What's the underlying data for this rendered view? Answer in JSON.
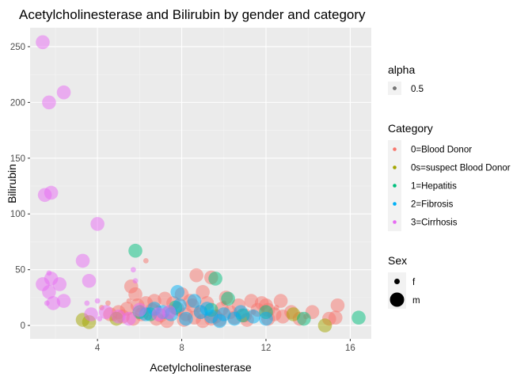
{
  "chart_data": {
    "type": "scatter",
    "title": "Acetylcholinesterase and Bilirubin by gender and category",
    "xlabel": "Acetylcholinesterase",
    "ylabel": "Bilirubin",
    "xlim": [
      0.8,
      17.0
    ],
    "ylim": [
      -12,
      267
    ],
    "x_ticks": [
      4,
      8,
      12,
      16
    ],
    "y_ticks": [
      0,
      50,
      100,
      150,
      200,
      250
    ],
    "grid": true,
    "point_opacity": 0.5,
    "legend_placement": "right",
    "legends": {
      "alpha": {
        "title": "alpha",
        "items": [
          {
            "label": "0.5"
          }
        ]
      },
      "category": {
        "title": "Category",
        "items": [
          {
            "label": "0=Blood Donor",
            "color": "#F8766D"
          },
          {
            "label": "0s=suspect Blood Donor",
            "color": "#A3A500"
          },
          {
            "label": "1=Hepatitis",
            "color": "#00BF7D"
          },
          {
            "label": "2=Fibrosis",
            "color": "#00B0F6"
          },
          {
            "label": "3=Cirrhosis",
            "color": "#E76BF3"
          }
        ]
      },
      "sex": {
        "title": "Sex",
        "items": [
          {
            "label": "f"
          },
          {
            "label": "m"
          }
        ]
      }
    },
    "series": [
      {
        "category": "0=Blood Donor",
        "color": "#F8766D",
        "points": [
          {
            "x": 5.6,
            "y": 35,
            "sex": "m"
          },
          {
            "x": 5.8,
            "y": 28,
            "sex": "m"
          },
          {
            "x": 6.3,
            "y": 58,
            "sex": "f"
          },
          {
            "x": 8.7,
            "y": 45,
            "sex": "m"
          },
          {
            "x": 9.4,
            "y": 43,
            "sex": "m"
          },
          {
            "x": 9.0,
            "y": 30,
            "sex": "m"
          },
          {
            "x": 8.0,
            "y": 28,
            "sex": "m"
          },
          {
            "x": 7.2,
            "y": 24,
            "sex": "m"
          },
          {
            "x": 6.7,
            "y": 22,
            "sex": "m"
          },
          {
            "x": 6.3,
            "y": 20,
            "sex": "m"
          },
          {
            "x": 5.9,
            "y": 18,
            "sex": "m"
          },
          {
            "x": 5.4,
            "y": 15,
            "sex": "m"
          },
          {
            "x": 5.0,
            "y": 12,
            "sex": "m"
          },
          {
            "x": 4.6,
            "y": 10,
            "sex": "m"
          },
          {
            "x": 4.2,
            "y": 16,
            "sex": "f"
          },
          {
            "x": 4.5,
            "y": 20,
            "sex": "f"
          },
          {
            "x": 5.2,
            "y": 8,
            "sex": "m"
          },
          {
            "x": 6.1,
            "y": 10,
            "sex": "m"
          },
          {
            "x": 6.6,
            "y": 14,
            "sex": "m"
          },
          {
            "x": 7.0,
            "y": 9,
            "sex": "m"
          },
          {
            "x": 7.4,
            "y": 12,
            "sex": "m"
          },
          {
            "x": 7.8,
            "y": 15,
            "sex": "m"
          },
          {
            "x": 8.2,
            "y": 10,
            "sex": "m"
          },
          {
            "x": 8.5,
            "y": 18,
            "sex": "m"
          },
          {
            "x": 8.9,
            "y": 12,
            "sex": "m"
          },
          {
            "x": 9.2,
            "y": 20,
            "sex": "m"
          },
          {
            "x": 9.6,
            "y": 8,
            "sex": "m"
          },
          {
            "x": 9.9,
            "y": 15,
            "sex": "m"
          },
          {
            "x": 10.3,
            "y": 12,
            "sex": "m"
          },
          {
            "x": 10.7,
            "y": 18,
            "sex": "m"
          },
          {
            "x": 11.0,
            "y": 9,
            "sex": "m"
          },
          {
            "x": 11.3,
            "y": 22,
            "sex": "m"
          },
          {
            "x": 11.6,
            "y": 14,
            "sex": "m"
          },
          {
            "x": 12.0,
            "y": 18,
            "sex": "m"
          },
          {
            "x": 12.4,
            "y": 10,
            "sex": "m"
          },
          {
            "x": 12.8,
            "y": 8,
            "sex": "m"
          },
          {
            "x": 13.2,
            "y": 12,
            "sex": "m"
          },
          {
            "x": 10.1,
            "y": 25,
            "sex": "m"
          },
          {
            "x": 11.8,
            "y": 20,
            "sex": "m"
          },
          {
            "x": 7.6,
            "y": 20,
            "sex": "m"
          },
          {
            "x": 8.1,
            "y": 5,
            "sex": "m"
          },
          {
            "x": 8.6,
            "y": 7,
            "sex": "m"
          },
          {
            "x": 9.0,
            "y": 4,
            "sex": "m"
          },
          {
            "x": 9.4,
            "y": 6,
            "sex": "m"
          },
          {
            "x": 9.8,
            "y": 5,
            "sex": "m"
          },
          {
            "x": 10.5,
            "y": 7,
            "sex": "m"
          },
          {
            "x": 11.1,
            "y": 5,
            "sex": "m"
          },
          {
            "x": 12.1,
            "y": 6,
            "sex": "m"
          },
          {
            "x": 6.8,
            "y": 6,
            "sex": "m"
          },
          {
            "x": 7.3,
            "y": 4,
            "sex": "m"
          },
          {
            "x": 5.7,
            "y": 6,
            "sex": "m"
          },
          {
            "x": 12.1,
            "y": 14,
            "sex": "m"
          },
          {
            "x": 13.6,
            "y": 6,
            "sex": "m"
          },
          {
            "x": 14.2,
            "y": 12,
            "sex": "m"
          },
          {
            "x": 15.0,
            "y": 6,
            "sex": "m"
          },
          {
            "x": 15.4,
            "y": 18,
            "sex": "m"
          },
          {
            "x": 15.3,
            "y": 7,
            "sex": "m"
          },
          {
            "x": 12.7,
            "y": 22,
            "sex": "m"
          },
          {
            "x": 8.4,
            "y": 22,
            "sex": "m"
          },
          {
            "x": 7.9,
            "y": 10,
            "sex": "f"
          },
          {
            "x": 9.2,
            "y": 9,
            "sex": "f"
          },
          {
            "x": 10.6,
            "y": 10,
            "sex": "f"
          },
          {
            "x": 6.9,
            "y": 16,
            "sex": "f"
          },
          {
            "x": 5.5,
            "y": 22,
            "sex": "f"
          },
          {
            "x": 10.0,
            "y": 20,
            "sex": "f"
          },
          {
            "x": 11.4,
            "y": 12,
            "sex": "f"
          },
          {
            "x": 8.8,
            "y": 14,
            "sex": "f"
          },
          {
            "x": 9.7,
            "y": 12,
            "sex": "f"
          },
          {
            "x": 7.1,
            "y": 8,
            "sex": "f"
          },
          {
            "x": 6.4,
            "y": 7,
            "sex": "f"
          },
          {
            "x": 4.8,
            "y": 6,
            "sex": "f"
          },
          {
            "x": 12.5,
            "y": 16,
            "sex": "f"
          },
          {
            "x": 13.9,
            "y": 8,
            "sex": "f"
          }
        ]
      },
      {
        "category": "0s=suspect Blood Donor",
        "color": "#A3A500",
        "points": [
          {
            "x": 3.3,
            "y": 5,
            "sex": "m"
          },
          {
            "x": 3.6,
            "y": 3,
            "sex": "m"
          },
          {
            "x": 4.9,
            "y": 6,
            "sex": "m"
          },
          {
            "x": 13.3,
            "y": 10,
            "sex": "m"
          },
          {
            "x": 14.8,
            "y": 0,
            "sex": "m"
          }
        ]
      },
      {
        "category": "1=Hepatitis",
        "color": "#00BF7D",
        "points": [
          {
            "x": 5.8,
            "y": 67,
            "sex": "m"
          },
          {
            "x": 9.6,
            "y": 42,
            "sex": "m"
          },
          {
            "x": 10.2,
            "y": 24,
            "sex": "m"
          },
          {
            "x": 7.7,
            "y": 16,
            "sex": "m"
          },
          {
            "x": 12.0,
            "y": 12,
            "sex": "m"
          },
          {
            "x": 13.8,
            "y": 6,
            "sex": "m"
          },
          {
            "x": 16.4,
            "y": 7,
            "sex": "m"
          },
          {
            "x": 6.5,
            "y": 10,
            "sex": "m"
          },
          {
            "x": 10.9,
            "y": 9,
            "sex": "m"
          },
          {
            "x": 9.4,
            "y": 14,
            "sex": "m"
          },
          {
            "x": 6.0,
            "y": 12,
            "sex": "m"
          }
        ]
      },
      {
        "category": "2=Fibrosis",
        "color": "#00B0F6",
        "points": [
          {
            "x": 7.8,
            "y": 30,
            "sex": "m"
          },
          {
            "x": 8.6,
            "y": 22,
            "sex": "m"
          },
          {
            "x": 7.1,
            "y": 12,
            "sex": "m"
          },
          {
            "x": 7.5,
            "y": 10,
            "sex": "m"
          },
          {
            "x": 8.9,
            "y": 12,
            "sex": "m"
          },
          {
            "x": 9.4,
            "y": 8,
            "sex": "m"
          },
          {
            "x": 10.0,
            "y": 10,
            "sex": "m"
          },
          {
            "x": 10.5,
            "y": 6,
            "sex": "m"
          },
          {
            "x": 11.4,
            "y": 8,
            "sex": "m"
          },
          {
            "x": 12.0,
            "y": 6,
            "sex": "m"
          },
          {
            "x": 9.2,
            "y": 15,
            "sex": "m"
          },
          {
            "x": 7.9,
            "y": 18,
            "sex": "m"
          },
          {
            "x": 10.8,
            "y": 12,
            "sex": "m"
          },
          {
            "x": 6.7,
            "y": 15,
            "sex": "m"
          },
          {
            "x": 8.2,
            "y": 6,
            "sex": "m"
          },
          {
            "x": 9.8,
            "y": 4,
            "sex": "m"
          },
          {
            "x": 6.3,
            "y": 10,
            "sex": "m"
          }
        ]
      },
      {
        "category": "3=Cirrhosis",
        "color": "#E76BF3",
        "points": [
          {
            "x": 1.4,
            "y": 254,
            "sex": "m"
          },
          {
            "x": 2.4,
            "y": 209,
            "sex": "m"
          },
          {
            "x": 1.7,
            "y": 200,
            "sex": "m"
          },
          {
            "x": 1.8,
            "y": 119,
            "sex": "m"
          },
          {
            "x": 1.5,
            "y": 117,
            "sex": "m"
          },
          {
            "x": 4.0,
            "y": 91,
            "sex": "m"
          },
          {
            "x": 3.3,
            "y": 58,
            "sex": "m"
          },
          {
            "x": 1.7,
            "y": 47,
            "sex": "f"
          },
          {
            "x": 1.8,
            "y": 42,
            "sex": "m"
          },
          {
            "x": 1.4,
            "y": 37,
            "sex": "m"
          },
          {
            "x": 2.2,
            "y": 37,
            "sex": "m"
          },
          {
            "x": 1.7,
            "y": 30,
            "sex": "m"
          },
          {
            "x": 3.6,
            "y": 40,
            "sex": "m"
          },
          {
            "x": 2.4,
            "y": 22,
            "sex": "m"
          },
          {
            "x": 1.9,
            "y": 20,
            "sex": "m"
          },
          {
            "x": 1.6,
            "y": 20,
            "sex": "f"
          },
          {
            "x": 3.5,
            "y": 20,
            "sex": "f"
          },
          {
            "x": 4.0,
            "y": 22,
            "sex": "f"
          },
          {
            "x": 5.7,
            "y": 50,
            "sex": "f"
          },
          {
            "x": 5.8,
            "y": 40,
            "sex": "f"
          },
          {
            "x": 3.7,
            "y": 10,
            "sex": "m"
          },
          {
            "x": 4.4,
            "y": 12,
            "sex": "m"
          },
          {
            "x": 5.0,
            "y": 8,
            "sex": "m"
          },
          {
            "x": 5.5,
            "y": 6,
            "sex": "m"
          },
          {
            "x": 6.9,
            "y": 10,
            "sex": "m"
          },
          {
            "x": 7.4,
            "y": 12,
            "sex": "m"
          },
          {
            "x": 6.0,
            "y": 14,
            "sex": "m"
          },
          {
            "x": 4.1,
            "y": 6,
            "sex": "f"
          }
        ]
      }
    ]
  }
}
